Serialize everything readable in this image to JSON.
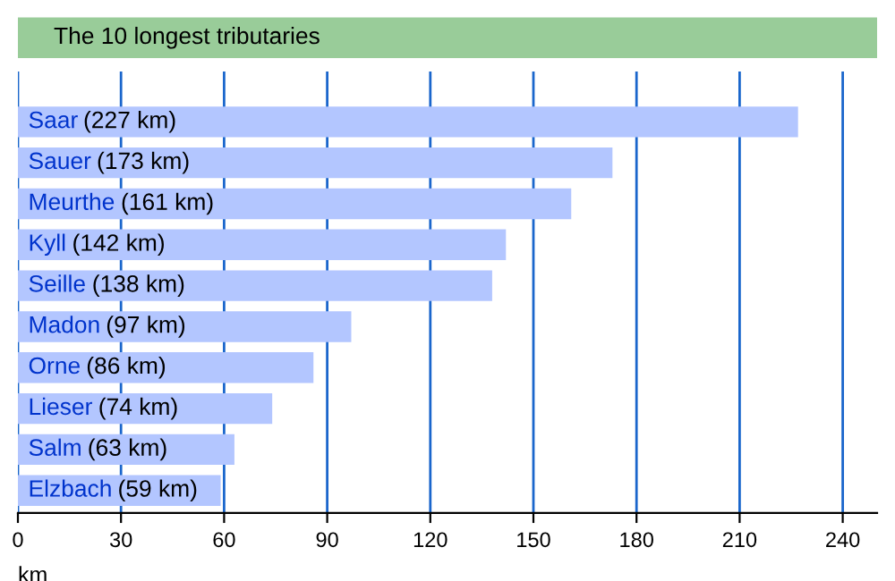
{
  "chart_data": {
    "type": "bar",
    "orientation": "horizontal",
    "title": "The 10 longest tributaries",
    "xlabel": "km",
    "categories": [
      "Saar",
      "Sauer",
      "Meurthe",
      "Kyll",
      "Seille",
      "Madon",
      "Orne",
      "Lieser",
      "Salm",
      "Elzbach"
    ],
    "values": [
      227,
      173,
      161,
      142,
      138,
      97,
      86,
      74,
      63,
      59
    ],
    "value_labels": [
      "(227 km)",
      "(173 km)",
      "(161 km)",
      "(142 km)",
      "(138 km)",
      "(97 km)",
      "(86 km)",
      "(74 km)",
      "(63 km)",
      "(59 km)"
    ],
    "color": "#b3c6ff",
    "xlim": [
      0,
      250
    ],
    "xticks": [
      0,
      30,
      60,
      90,
      120,
      150,
      180,
      210,
      240
    ],
    "grid": "x"
  }
}
